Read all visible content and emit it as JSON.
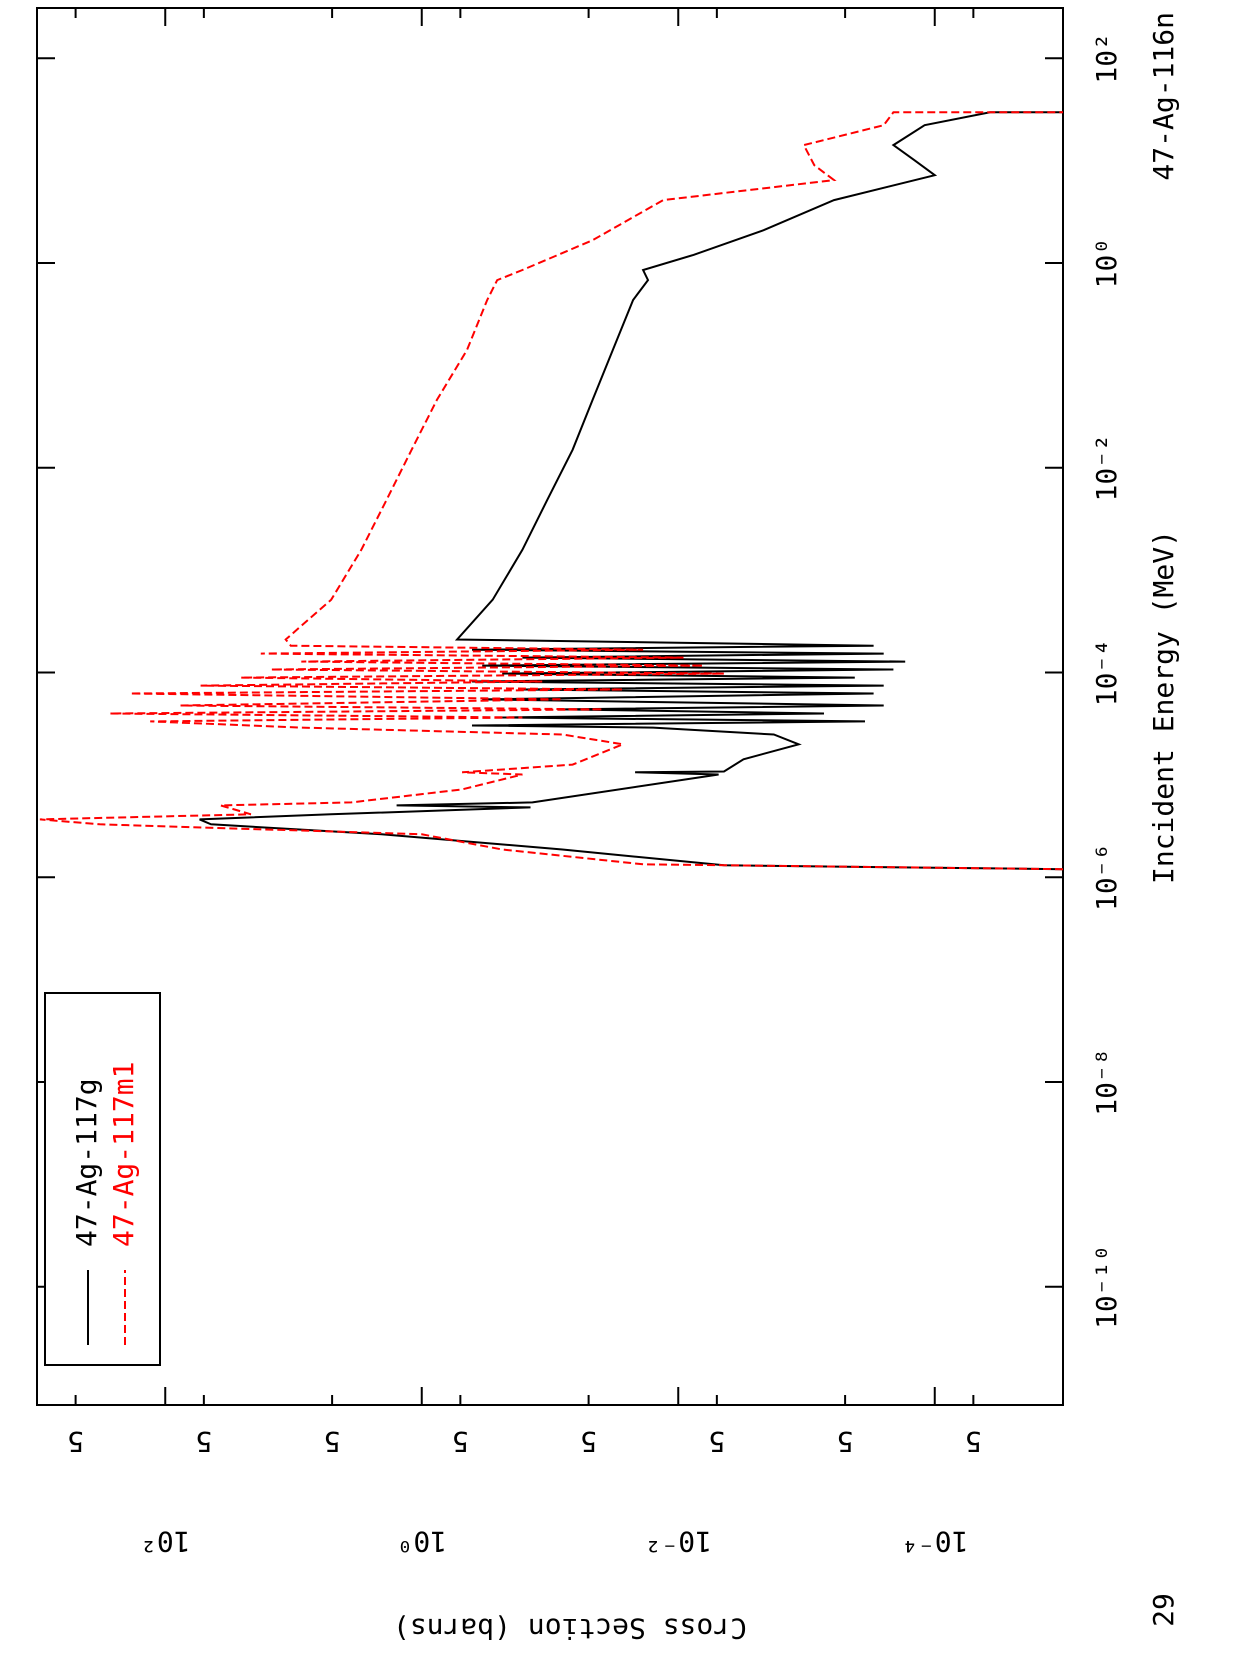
{
  "chart_data": {
    "type": "line",
    "title": "47-Ag-116n",
    "page_number": "29",
    "x_label": "Incident Energy (MeV)",
    "y_label": "Cross Section (barns)",
    "log_x": true,
    "log_y": true,
    "grid": false,
    "legend": "upper left",
    "xlim": [
      7e-12,
      310
    ],
    "ylim": [
      1e-05,
      1000
    ],
    "xticks": [
      {
        "value": 1e-10,
        "label": "10⁻¹⁰"
      },
      {
        "value": 1e-08,
        "label": "10⁻⁸"
      },
      {
        "value": 1e-06,
        "label": "10⁻⁶"
      },
      {
        "value": 0.0001,
        "label": "10⁻⁴"
      },
      {
        "value": 0.01,
        "label": "10⁻²"
      },
      {
        "value": 1,
        "label": "10⁰"
      },
      {
        "value": 100,
        "label": "10²"
      }
    ],
    "yticks": [
      {
        "value": 500,
        "label": "5"
      },
      {
        "value": 100,
        "label": "10²"
      },
      {
        "value": 50,
        "label": "5"
      },
      {
        "value": 5,
        "label": "5"
      },
      {
        "value": 1,
        "label": "10⁰"
      },
      {
        "value": 0.5,
        "label": "5"
      },
      {
        "value": 0.05,
        "label": "5"
      },
      {
        "value": 0.01,
        "label": "10⁻²"
      },
      {
        "value": 0.005,
        "label": "5"
      },
      {
        "value": 0.0005,
        "label": "5"
      },
      {
        "value": 0.0001,
        "label": "10⁻⁴"
      },
      {
        "value": 5e-05,
        "label": "5"
      }
    ],
    "series": [
      {
        "name": "47-Ag-117g",
        "color": "#000000",
        "line_style": "solid",
        "x": [
          1.2e-06,
          1.31e-06,
          1.87e-06,
          2.63e-06,
          3.29e-06,
          3.68e-06,
          4.12e-06,
          4.82e-06,
          5.04e-06,
          5.39e-06,
          1.01e-05,
          1.06e-05,
          1.08e-05,
          1.42e-05,
          1.99e-05,
          2.48e-05,
          2.9e-05,
          3.04e-05,
          3.33e-05,
          3.64e-05,
          3.98e-05,
          4.36e-05,
          4.76e-05,
          5.46e-05,
          6.24e-05,
          6.83e-05,
          7.46e-05,
          8.17e-05,
          8.93e-05,
          9.77e-05,
          0.000107,
          0.000117,
          0.000128,
          0.00014,
          0.000153,
          0.000167,
          0.000183,
          0.00021,
          0.000515,
          0.00158,
          0.00487,
          0.015,
          0.046,
          0.1416,
          0.4355,
          0.682,
          0.855,
          1.2,
          2.1,
          4.12,
          7.22,
          10.1,
          14.2,
          22.2,
          29.7,
          29.7
        ],
        "values": [
          1e-05,
          0.0044,
          0.08,
          2.06,
          44,
          54,
          5.1,
          0.142,
          1.57,
          0.137,
          0.00485,
          0.0217,
          0.0044,
          0.0031,
          0.00115,
          0.0018,
          0.0157,
          0.406,
          0.00035,
          0.236,
          0.00073,
          0.08,
          0.00025,
          0.338,
          0.0003,
          0.164,
          0.00025,
          0.406,
          0.00042,
          0.236,
          0.00021,
          0.338,
          0.00017,
          0.164,
          0.00025,
          0.406,
          0.0003,
          0.53,
          0.28,
          0.164,
          0.105,
          0.0667,
          0.0465,
          0.0324,
          0.0225,
          0.0172,
          0.0188,
          0.0076,
          0.00215,
          0.00061,
          0.0001,
          0.000144,
          0.00021,
          0.00012,
          3.7e-05,
          1e-05
        ]
      },
      {
        "name": "47-Ag-117m1",
        "color": "#ff0000",
        "line_style": "dashed",
        "x": [
          1.2e-06,
          1.34e-06,
          1.87e-06,
          2.63e-06,
          3.29e-06,
          3.68e-06,
          4.12e-06,
          5.04e-06,
          5.39e-06,
          7.22e-06,
          1.01e-05,
          1.06e-05,
          1.26e-05,
          1.99e-05,
          2.48e-05,
          2.9e-05,
          3.33e-05,
          3.64e-05,
          3.98e-05,
          4.36e-05,
          4.76e-05,
          5.46e-05,
          6.24e-05,
          6.83e-05,
          7.46e-05,
          8.17e-05,
          8.93e-05,
          9.77e-05,
          0.000107,
          0.000117,
          0.000128,
          0.00014,
          0.000153,
          0.000167,
          0.000183,
          0.00021,
          0.000515,
          0.00158,
          0.00487,
          0.015,
          0.046,
          0.1416,
          0.4355,
          0.682,
          0.855,
          1.67,
          4.12,
          6.46,
          9.04,
          14.2,
          22.2,
          29.7,
          29.7
        ],
        "values": [
          1e-05,
          0.0188,
          0.236,
          1.0,
          324,
          950,
          21.5,
          37,
          3.54,
          0.485,
          0.164,
          0.485,
          0.0667,
          0.027,
          0.08,
          8.7,
          131,
          0.164,
          270,
          0.0387,
          76,
          0.08,
          188,
          0.027,
          53,
          0.115,
          25.8,
          0.0044,
          15,
          0.0064,
          8.7,
          0.0091,
          18,
          0.0188,
          10.5,
          11.5,
          5.08,
          2.96,
          1.88,
          1.2,
          0.762,
          0.444,
          0.309,
          0.258,
          0.164,
          0.0465,
          0.0131,
          0.00061,
          0.00087,
          0.00105,
          0.00025,
          0.00021,
          1e-05
        ]
      }
    ]
  }
}
